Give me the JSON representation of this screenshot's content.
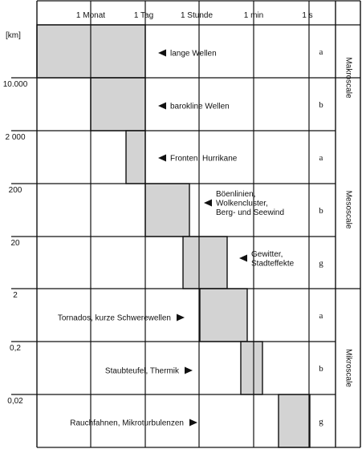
{
  "time_axis": [
    "1 Monat",
    "1 Tag",
    "1 Stunde",
    "1 min",
    "1 s"
  ],
  "km_unit": "[km]",
  "km_labels": [
    "10.000",
    "2 000",
    "200",
    "20",
    "2",
    "0,2",
    "0,02"
  ],
  "rows": [
    {
      "phenomenon": [
        "lange Wellen"
      ],
      "sub": "a",
      "arrow": "left"
    },
    {
      "phenomenon": [
        "barokline Wellen"
      ],
      "sub": "b",
      "arrow": "left"
    },
    {
      "phenomenon": [
        "Fronten, Hurrikane"
      ],
      "sub": "a",
      "arrow": "left"
    },
    {
      "phenomenon": [
        "Böenlinien,",
        "Wolkencluster,",
        "Berg- und Seewind"
      ],
      "sub": "b",
      "arrow": "left"
    },
    {
      "phenomenon": [
        "Gewitter,",
        "Stadteffekte"
      ],
      "sub": "g",
      "arrow": "left"
    },
    {
      "phenomenon": [
        "Tornados, kurze Schwerewellen"
      ],
      "sub": "a",
      "arrow": "right"
    },
    {
      "phenomenon": [
        "Staubteufel, Thermik"
      ],
      "sub": "b",
      "arrow": "right"
    },
    {
      "phenomenon": [
        "Rauchfahnen, Mikroturbulenzen"
      ],
      "sub": "g",
      "arrow": "right"
    }
  ],
  "scales": [
    {
      "name": "Makroscale",
      "rows": [
        0,
        1
      ]
    },
    {
      "name": "Mesoscale",
      "rows": [
        2,
        4
      ]
    },
    {
      "name": "Mikroscale",
      "rows": [
        5,
        7
      ]
    }
  ],
  "colors": {
    "box_fill": "#d3d3d3",
    "line": "#111111"
  }
}
